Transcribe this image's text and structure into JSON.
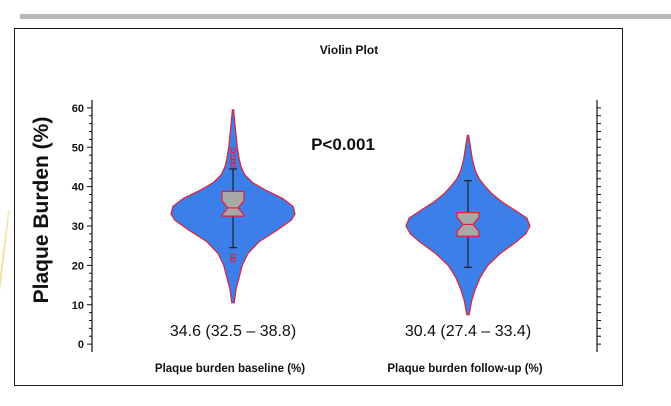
{
  "chart_data": {
    "type": "violin",
    "title": "Violin Plot",
    "ylabel": "Plaque Burden (%)",
    "xlabel": "",
    "ylim": [
      0,
      62
    ],
    "yticks": [
      0,
      10,
      20,
      30,
      40,
      50,
      60
    ],
    "annotation": "P<0.001",
    "colors": {
      "violin_fill": "#3d7fe9",
      "violin_edge": "#e0203a",
      "box_fill": "#a8a8a8",
      "outlier": "#e0203a"
    },
    "groups": [
      {
        "category": "Plaque burden baseline (%)",
        "summary_label": "34.6 (32.5 – 38.8)",
        "median": 34.6,
        "q1": 32.5,
        "q3": 38.8,
        "whisker_low": 24.5,
        "whisker_high": 44.5,
        "min": 10.5,
        "max": 59.5,
        "outliers": [
          21.5,
          22.3,
          45.5,
          46.3,
          47.5,
          49.2
        ],
        "density": [
          [
            10.5,
            0.02
          ],
          [
            14,
            0.05
          ],
          [
            17,
            0.1
          ],
          [
            20,
            0.15
          ],
          [
            23,
            0.24
          ],
          [
            26,
            0.42
          ],
          [
            29,
            0.72
          ],
          [
            31.5,
            0.94
          ],
          [
            33,
            1.0
          ],
          [
            35,
            0.97
          ],
          [
            37,
            0.8
          ],
          [
            39,
            0.54
          ],
          [
            41,
            0.32
          ],
          [
            43,
            0.19
          ],
          [
            45,
            0.13
          ],
          [
            47,
            0.1
          ],
          [
            50,
            0.07
          ],
          [
            53,
            0.05
          ],
          [
            56,
            0.03
          ],
          [
            59.5,
            0.01
          ]
        ]
      },
      {
        "category": "Plaque burden follow-up (%)",
        "summary_label": "30.4 (27.4 – 33.4)",
        "median": 30.4,
        "q1": 27.4,
        "q3": 33.4,
        "whisker_low": 19.5,
        "whisker_high": 41.5,
        "min": 7.5,
        "max": 53,
        "outliers": [],
        "density": [
          [
            7.5,
            0.02
          ],
          [
            11,
            0.06
          ],
          [
            14,
            0.12
          ],
          [
            17,
            0.2
          ],
          [
            20,
            0.32
          ],
          [
            23,
            0.52
          ],
          [
            26,
            0.78
          ],
          [
            28,
            0.93
          ],
          [
            30,
            1.0
          ],
          [
            32,
            0.95
          ],
          [
            34,
            0.76
          ],
          [
            36,
            0.56
          ],
          [
            38,
            0.4
          ],
          [
            40,
            0.28
          ],
          [
            42,
            0.18
          ],
          [
            44,
            0.12
          ],
          [
            47,
            0.07
          ],
          [
            50,
            0.04
          ],
          [
            53,
            0.01
          ]
        ]
      }
    ]
  }
}
